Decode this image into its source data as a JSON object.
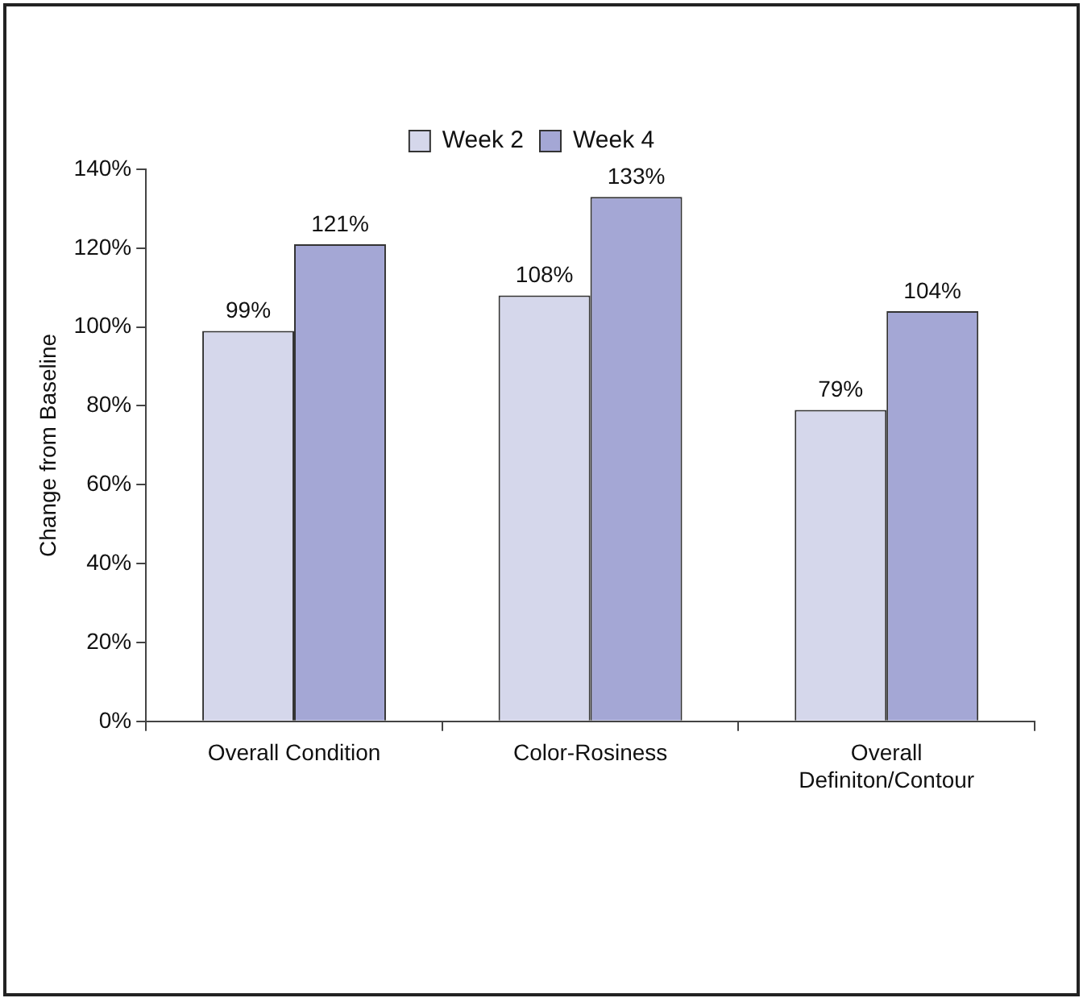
{
  "chart_data": {
    "type": "bar",
    "ylabel": "Change from Baseline",
    "categories": [
      "Overall Condition",
      "Color-Rosiness",
      "Overall Definiton/Contour"
    ],
    "series": [
      {
        "name": "Week 2",
        "color": "#d5d7eb",
        "values": [
          99,
          108,
          79
        ],
        "value_labels": [
          "99%",
          "108%",
          "79%"
        ]
      },
      {
        "name": "Week 4",
        "color": "#a4a7d5",
        "values": [
          121,
          133,
          104
        ],
        "value_labels": [
          "121%",
          "133%",
          "104%"
        ]
      }
    ],
    "ylim": [
      0,
      140
    ],
    "yticks": [
      {
        "value": 0,
        "label": "0%"
      },
      {
        "value": 20,
        "label": "20%"
      },
      {
        "value": 40,
        "label": "40%"
      },
      {
        "value": 60,
        "label": "60%"
      },
      {
        "value": 80,
        "label": "80%"
      },
      {
        "value": 100,
        "label": "100%"
      },
      {
        "value": 120,
        "label": "120%"
      },
      {
        "value": 140,
        "label": "140%"
      }
    ],
    "grid": false,
    "legend": "top"
  }
}
